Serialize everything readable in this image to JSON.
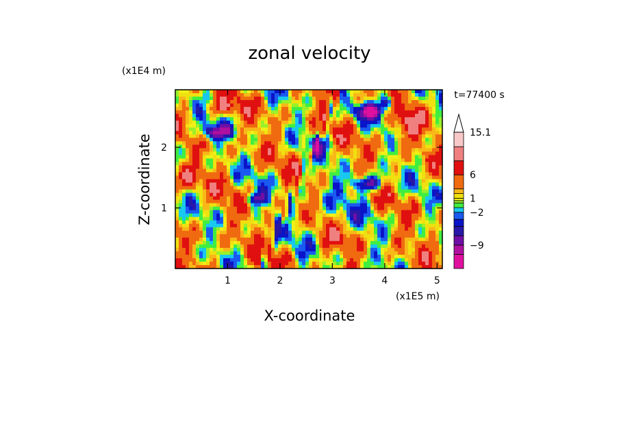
{
  "chart_data": {
    "type": "heatmap",
    "title": "zonal velocity",
    "xlabel": "X-coordinate",
    "ylabel": "Z-coordinate",
    "x_unit": "(x1E5 m)",
    "y_unit": "(x1E4 m)",
    "time_label": "t=77400 s",
    "xlim": [
      0,
      5.1
    ],
    "ylim": [
      0,
      2.95
    ],
    "x_ticks": [
      "1",
      "2",
      "3",
      "4",
      "5"
    ],
    "y_ticks": [
      "1",
      "2"
    ],
    "x_tick_values": [
      1,
      2,
      3,
      4,
      5
    ],
    "y_tick_values": [
      1,
      2
    ],
    "colorbar": {
      "labels": [
        "15.1",
        "6",
        "1",
        "−2",
        "−9"
      ],
      "label_values": [
        15.1,
        6,
        1,
        -2,
        -9
      ],
      "bands": [
        {
          "lo": -14,
          "hi": -11,
          "color": "#e0109f"
        },
        {
          "lo": -11,
          "hi": -9,
          "color": "#b0109f"
        },
        {
          "lo": -9,
          "hi": -7,
          "color": "#700fa5"
        },
        {
          "lo": -7,
          "hi": -5,
          "color": "#2818a8"
        },
        {
          "lo": -5,
          "hi": -3.5,
          "color": "#0a14c8"
        },
        {
          "lo": -3.5,
          "hi": -2,
          "color": "#1a5af0"
        },
        {
          "lo": -2,
          "hi": -1,
          "color": "#18c8ee"
        },
        {
          "lo": -1,
          "hi": 0,
          "color": "#40ee40"
        },
        {
          "lo": 0,
          "hi": 0.5,
          "color": "#9af02a"
        },
        {
          "lo": 0.5,
          "hi": 1,
          "color": "#f0f018"
        },
        {
          "lo": 1,
          "hi": 2,
          "color": "#f0e010"
        },
        {
          "lo": 2,
          "hi": 3,
          "color": "#f8b818"
        },
        {
          "lo": 3,
          "hi": 6,
          "color": "#f06a10"
        },
        {
          "lo": 6,
          "hi": 9,
          "color": "#e01010"
        },
        {
          "lo": 9,
          "hi": 12,
          "color": "#f08080"
        },
        {
          "lo": 12,
          "hi": 15.1,
          "color": "#f8c8c8"
        }
      ],
      "extend_top": true
    },
    "grid": false
  }
}
